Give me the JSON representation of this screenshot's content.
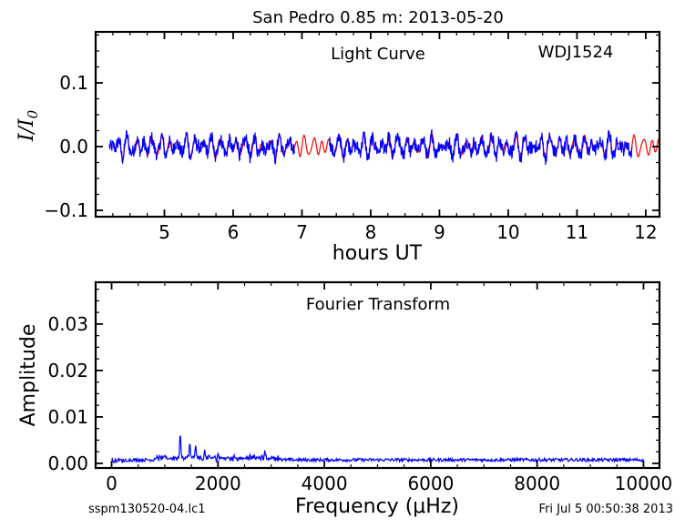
{
  "figure": {
    "title": "San Pedro 0.85 m:  2013-05-20",
    "footer_left": "sspm130520-04.lc1",
    "footer_right": "Fri Jul  5 00:50:38 2013"
  },
  "chart_data": [
    {
      "type": "line",
      "panel": "light-curve",
      "annotation": "Light Curve",
      "target": "WDJ1524",
      "xlabel": "hours UT",
      "ylabel": "I/I0",
      "xlim": [
        4.0,
        12.2
      ],
      "ylim": [
        -0.11,
        0.18
      ],
      "xticks": [
        5,
        6,
        7,
        8,
        9,
        10,
        11,
        12
      ],
      "xtick_labels": [
        "5",
        "6",
        "7",
        "8",
        "9",
        "10",
        "11",
        "12"
      ],
      "yticks": [
        -0.1,
        0.0,
        0.1
      ],
      "ytick_labels": [
        "−0.1",
        "0.0",
        "0.1"
      ],
      "series": [
        {
          "color": "#0000ff",
          "x_start": 4.2,
          "x_end": 11.8,
          "gap": [
            6.9,
            7.4
          ],
          "amplitude": 0.02
        },
        {
          "color": "#ff0000",
          "x_start": 4.2,
          "x_end": 12.2,
          "amplitude": 0.018
        }
      ],
      "grid": false
    },
    {
      "type": "line",
      "panel": "fourier-transform",
      "annotation": "Fourier Transform",
      "xlabel": "Frequency (μHz)",
      "ylabel": "Amplitude",
      "xlim": [
        -300,
        10300
      ],
      "ylim": [
        -0.001,
        0.039
      ],
      "xticks": [
        0,
        2000,
        4000,
        6000,
        8000,
        10000
      ],
      "xtick_labels": [
        "0",
        "2000",
        "4000",
        "6000",
        "8000",
        "10000"
      ],
      "yticks": [
        0.0,
        0.01,
        0.02,
        0.03
      ],
      "ytick_labels": [
        "0.00",
        "0.01",
        "0.02",
        "0.03"
      ],
      "series": [
        {
          "color": "#0000ff",
          "x_start": 0,
          "x_end": 10000,
          "peaks": [
            {
              "x": 1290,
              "y": 0.0065
            },
            {
              "x": 1470,
              "y": 0.0045
            },
            {
              "x": 1580,
              "y": 0.004
            },
            {
              "x": 1750,
              "y": 0.003
            },
            {
              "x": 2000,
              "y": 0.0022
            },
            {
              "x": 2880,
              "y": 0.0028
            },
            {
              "x": 2600,
              "y": 0.002
            }
          ]
        }
      ],
      "grid": false
    }
  ]
}
